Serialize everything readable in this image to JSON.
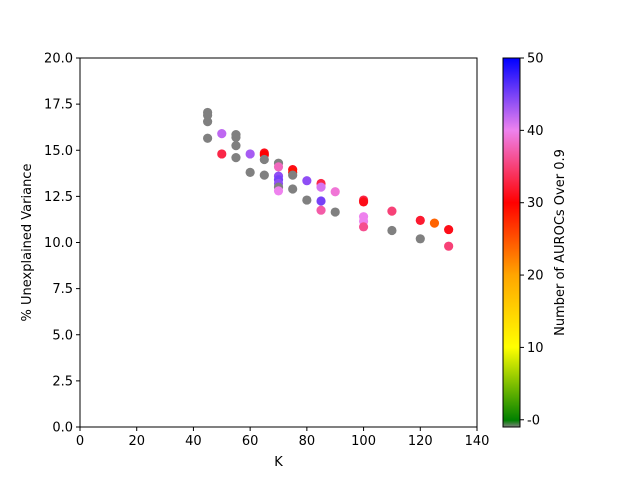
{
  "chart_data": {
    "type": "scatter",
    "title": "",
    "xlabel": "K",
    "ylabel": "% Unexplained Variance",
    "xlim": [
      0,
      140
    ],
    "ylim": [
      0,
      20
    ],
    "xticks": [
      "0",
      "20",
      "40",
      "60",
      "80",
      "100",
      "120",
      "140"
    ],
    "yticks": [
      "0.0",
      "2.5",
      "5.0",
      "7.5",
      "10.0",
      "12.5",
      "15.0",
      "17.5",
      "20.0"
    ],
    "grid": false,
    "colorbar": {
      "label": "Number of AUROCs Over 0.9",
      "range": [
        -1,
        50
      ],
      "ticks": [
        "-0",
        "10",
        "20",
        "30",
        "40",
        "50"
      ],
      "colors": {
        "gray": "#808080",
        "green": "#008000",
        "yellow": "#ffff00",
        "orange": "#ffa500",
        "red": "#ff0000",
        "violet": "#ee82ee",
        "blue": "#0000ff"
      }
    },
    "points": [
      {
        "x": 45,
        "y": 17.05,
        "c": -1
      },
      {
        "x": 45,
        "y": 16.9,
        "c": -1
      },
      {
        "x": 45,
        "y": 16.55,
        "c": -1
      },
      {
        "x": 45,
        "y": 15.65,
        "c": -1
      },
      {
        "x": 50,
        "y": 15.9,
        "c": 42
      },
      {
        "x": 50,
        "y": 14.8,
        "c": 33
      },
      {
        "x": 55,
        "y": 15.85,
        "c": -1
      },
      {
        "x": 55,
        "y": 15.7,
        "c": -1
      },
      {
        "x": 55,
        "y": 15.25,
        "c": -1
      },
      {
        "x": 55,
        "y": 14.6,
        "c": -1
      },
      {
        "x": 60,
        "y": 14.8,
        "c": 43
      },
      {
        "x": 60,
        "y": 13.8,
        "c": -1
      },
      {
        "x": 65,
        "y": 14.85,
        "c": 31
      },
      {
        "x": 65,
        "y": 14.75,
        "c": 30
      },
      {
        "x": 65,
        "y": 14.5,
        "c": -1
      },
      {
        "x": 65,
        "y": 13.65,
        "c": -1
      },
      {
        "x": 70,
        "y": 14.3,
        "c": -1
      },
      {
        "x": 70,
        "y": 14.1,
        "c": 38
      },
      {
        "x": 70,
        "y": 13.6,
        "c": 44
      },
      {
        "x": 70,
        "y": 13.4,
        "c": 45
      },
      {
        "x": 70,
        "y": 13.2,
        "c": 44
      },
      {
        "x": 70,
        "y": 13.0,
        "c": -1
      },
      {
        "x": 70,
        "y": 12.8,
        "c": 40
      },
      {
        "x": 75,
        "y": 13.95,
        "c": 31
      },
      {
        "x": 75,
        "y": 13.8,
        "c": 29
      },
      {
        "x": 75,
        "y": 13.65,
        "c": -1
      },
      {
        "x": 75,
        "y": 12.9,
        "c": -1
      },
      {
        "x": 80,
        "y": 13.35,
        "c": 44
      },
      {
        "x": 80,
        "y": 12.3,
        "c": -1
      },
      {
        "x": 85,
        "y": 13.2,
        "c": 33
      },
      {
        "x": 85,
        "y": 13.0,
        "c": 41
      },
      {
        "x": 85,
        "y": 12.25,
        "c": 45
      },
      {
        "x": 85,
        "y": 11.75,
        "c": 37
      },
      {
        "x": 90,
        "y": 12.75,
        "c": 39
      },
      {
        "x": 90,
        "y": 11.65,
        "c": -1
      },
      {
        "x": 100,
        "y": 12.3,
        "c": 33
      },
      {
        "x": 100,
        "y": 12.2,
        "c": 31
      },
      {
        "x": 100,
        "y": 11.4,
        "c": 40
      },
      {
        "x": 100,
        "y": 11.15,
        "c": 40
      },
      {
        "x": 100,
        "y": 10.85,
        "c": 36
      },
      {
        "x": 110,
        "y": 11.7,
        "c": 35
      },
      {
        "x": 110,
        "y": 10.65,
        "c": -1
      },
      {
        "x": 120,
        "y": 11.2,
        "c": 32
      },
      {
        "x": 120,
        "y": 10.2,
        "c": -1
      },
      {
        "x": 125,
        "y": 11.05,
        "c": 24
      },
      {
        "x": 130,
        "y": 10.7,
        "c": 31
      },
      {
        "x": 130,
        "y": 9.8,
        "c": 35
      }
    ]
  }
}
